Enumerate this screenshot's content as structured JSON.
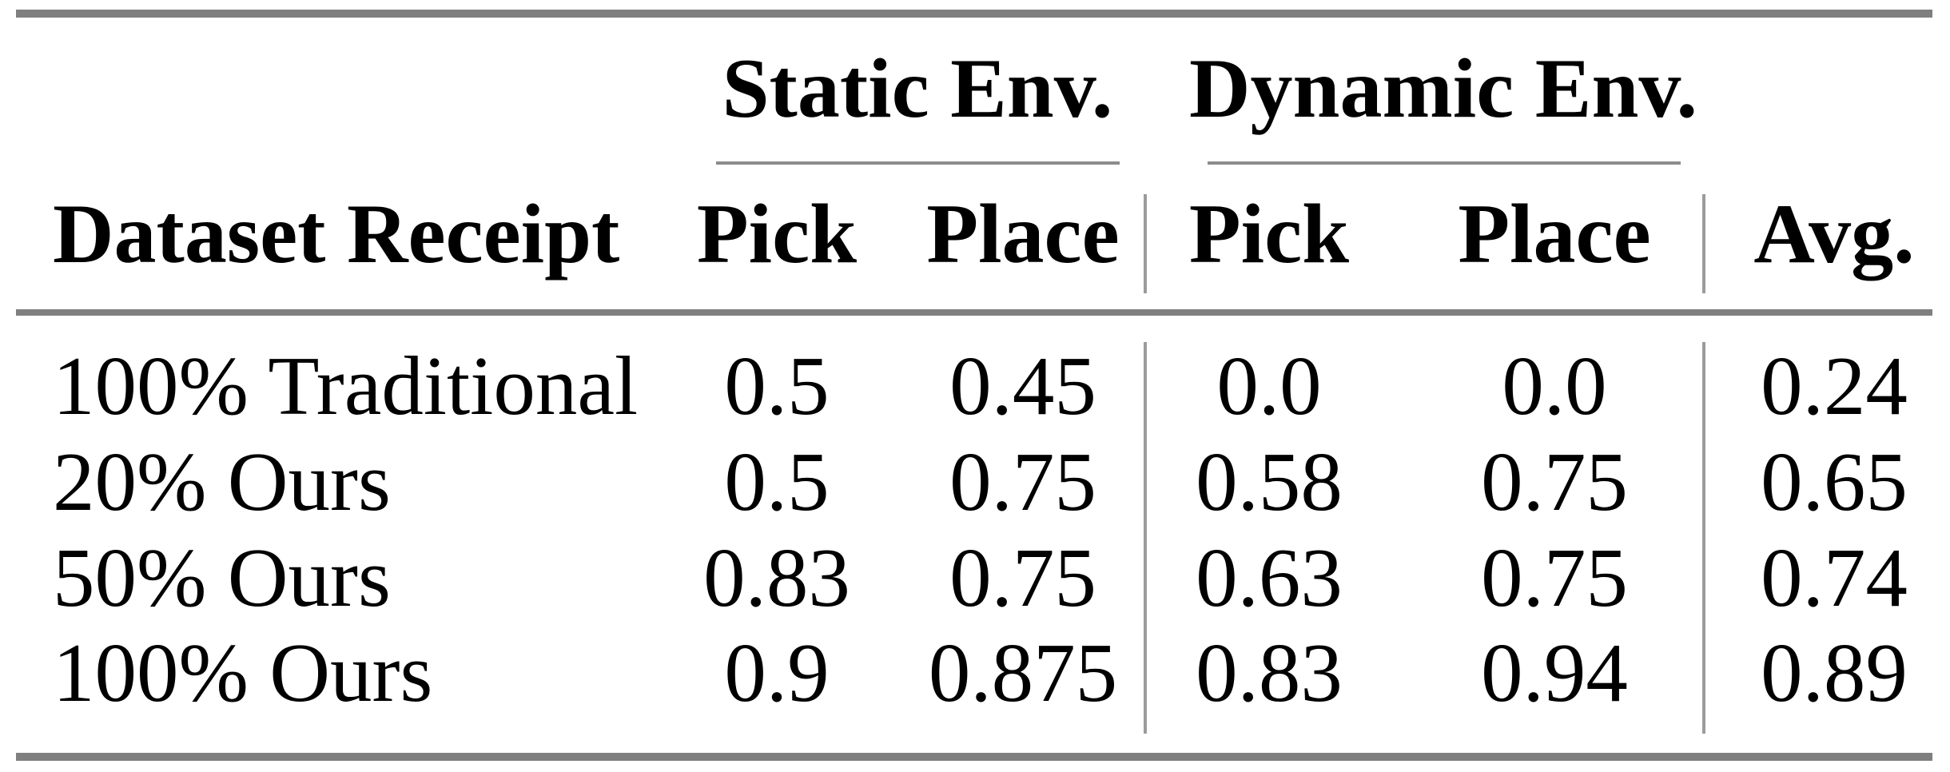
{
  "table": {
    "group_headers": {
      "static": "Static Env.",
      "dynamic": "Dynamic Env."
    },
    "columns": {
      "row_label": "Dataset Receipt",
      "static_pick": "Pick",
      "static_place": "Place",
      "dynamic_pick": "Pick",
      "dynamic_place": "Place",
      "avg": "Avg."
    },
    "rows": [
      {
        "label": "100% Traditional",
        "static_pick": "0.5",
        "static_place": "0.45",
        "dynamic_pick": "0.0",
        "dynamic_place": "0.0",
        "avg": "0.24"
      },
      {
        "label": "20% Ours",
        "static_pick": "0.5",
        "static_place": "0.75",
        "dynamic_pick": "0.58",
        "dynamic_place": "0.75",
        "avg": "0.65"
      },
      {
        "label": "50% Ours",
        "static_pick": "0.83",
        "static_place": "0.75",
        "dynamic_pick": "0.63",
        "dynamic_place": "0.75",
        "avg": "0.74"
      },
      {
        "label": "100% Ours",
        "static_pick": "0.9",
        "static_place": "0.875",
        "dynamic_pick": "0.83",
        "dynamic_place": "0.94",
        "avg": "0.89"
      }
    ],
    "colors": {
      "horizontal_rule": "#7f7f7f",
      "vertical_divider": "#9b9b9b",
      "cmidrule": "#8c8c8c",
      "text": "#000000",
      "background": "#ffffff"
    }
  }
}
